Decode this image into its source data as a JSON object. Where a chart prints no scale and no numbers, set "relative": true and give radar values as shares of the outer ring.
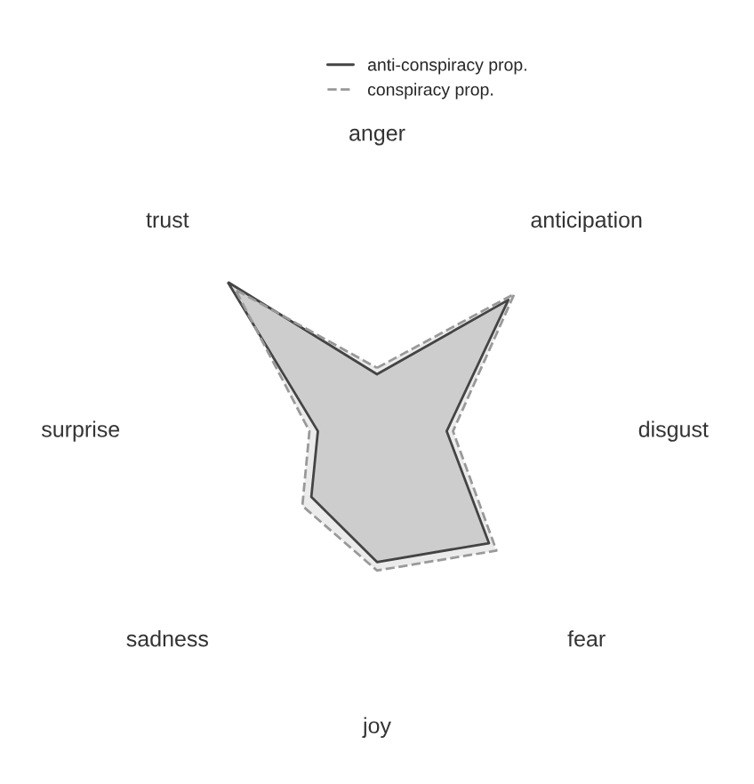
{
  "chart_data": {
    "type": "radar",
    "relative": true,
    "categories": [
      "anger",
      "anticipation",
      "disgust",
      "fear",
      "joy",
      "sadness",
      "surprise",
      "trust"
    ],
    "series": [
      {
        "name": "anti-conspiracy prop.",
        "color": "#444444",
        "line_style": "solid",
        "values": [
          0.27,
          0.88,
          0.33,
          0.75,
          0.62,
          0.44,
          0.28,
          1.0
        ]
      },
      {
        "name": "conspiracy prop.",
        "color": "#999999",
        "line_style": "dashed",
        "values": [
          0.3,
          0.92,
          0.36,
          0.8,
          0.66,
          0.5,
          0.32,
          0.95
        ]
      }
    ],
    "legend": "top",
    "grid": false
  }
}
